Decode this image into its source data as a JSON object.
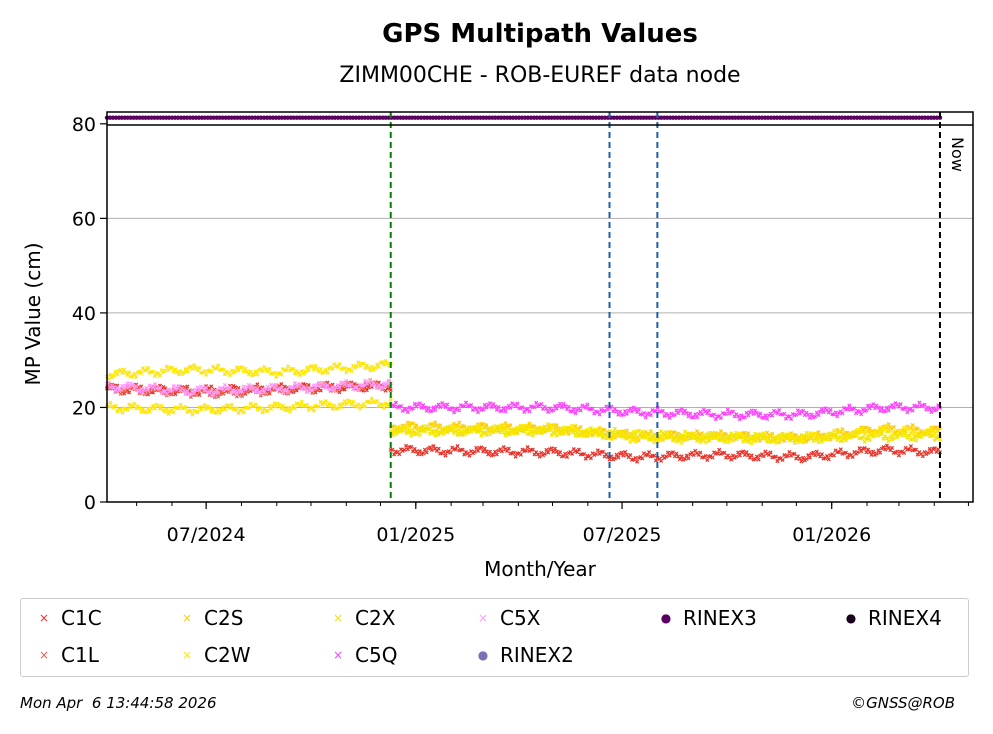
{
  "chart_data": {
    "type": "scatter",
    "title": "GPS Multipath Values",
    "subtitle": "ZIMM00CHE - ROB-EUREF data node",
    "xlabel": "Month/Year",
    "ylabel": "MP Value (cm)",
    "ylim": [
      0,
      82.5
    ],
    "yticks": [
      0,
      20,
      40,
      60,
      80
    ],
    "xlim": [
      "2024-04-05",
      "2026-05-05"
    ],
    "xticks": [
      {
        "date": "2024-07-01",
        "label": "07/2024"
      },
      {
        "date": "2025-01-01",
        "label": "01/2025"
      },
      {
        "date": "2025-07-01",
        "label": "07/2025"
      },
      {
        "date": "2026-01-01",
        "label": "01/2026"
      }
    ],
    "grid": "y",
    "rinex_band_y": 81.3,
    "vertical_lines": [
      {
        "date": "2024-12-10",
        "color": "#008000",
        "label": ""
      },
      {
        "date": "2025-06-20",
        "color": "#1f5fa8",
        "label": ""
      },
      {
        "date": "2025-08-01",
        "color": "#1f5fa8",
        "label": ""
      },
      {
        "date": "2026-04-06",
        "color": "#000000",
        "label": "Now"
      }
    ],
    "series": [
      {
        "name": "C1C",
        "color": "#e8332a",
        "marker": "x",
        "segments": [
          {
            "start": "2024-04-05",
            "end": "2024-12-10",
            "points": [
              [
                0,
                24
              ],
              [
                0.3,
                23.5
              ],
              [
                0.6,
                24
              ],
              [
                1,
                24.5
              ]
            ]
          },
          {
            "start": "2024-12-10",
            "end": "2026-04-06",
            "points": [
              [
                0,
                11
              ],
              [
                0.3,
                10.5
              ],
              [
                0.45,
                9.5
              ],
              [
                0.6,
                10
              ],
              [
                0.75,
                9.5
              ],
              [
                0.9,
                11
              ],
              [
                1,
                10.5
              ]
            ]
          }
        ]
      },
      {
        "name": "C1L",
        "color": "#f06050",
        "marker": "x",
        "segments": [
          {
            "start": "2024-04-05",
            "end": "2024-12-10",
            "points": [
              [
                0,
                24
              ],
              [
                0.4,
                23
              ],
              [
                0.7,
                24
              ],
              [
                1,
                25
              ]
            ]
          }
        ]
      },
      {
        "name": "C2S",
        "color": "#ffcc00",
        "marker": "x",
        "segments": [
          {
            "start": "2024-12-10",
            "end": "2026-04-06",
            "points": [
              [
                0,
                16
              ],
              [
                0.3,
                15.5
              ],
              [
                0.45,
                14
              ],
              [
                0.6,
                14
              ],
              [
                0.75,
                13.5
              ],
              [
                0.9,
                15.5
              ],
              [
                1,
                15
              ]
            ]
          }
        ]
      },
      {
        "name": "C2W",
        "color": "#ffe600",
        "marker": "x",
        "segments": [
          {
            "start": "2024-04-05",
            "end": "2024-12-10",
            "points": [
              [
                0,
                27
              ],
              [
                0.3,
                28
              ],
              [
                0.6,
                27.5
              ],
              [
                1,
                29
              ]
            ]
          },
          {
            "start": "2024-04-05",
            "end": "2024-12-10",
            "points": [
              [
                0,
                20
              ],
              [
                0.3,
                19.5
              ],
              [
                0.6,
                20
              ],
              [
                1,
                21
              ]
            ]
          },
          {
            "start": "2024-12-10",
            "end": "2026-04-06",
            "points": [
              [
                0,
                15
              ],
              [
                0.3,
                15.5
              ],
              [
                0.45,
                13.5
              ],
              [
                0.6,
                13.5
              ],
              [
                0.75,
                13.5
              ],
              [
                0.9,
                15
              ],
              [
                1,
                14.5
              ]
            ]
          }
        ]
      },
      {
        "name": "C2X",
        "color": "#f2e600",
        "marker": "x",
        "segments": [
          {
            "start": "2024-12-10",
            "end": "2026-04-06",
            "points": [
              [
                0,
                15
              ],
              [
                0.3,
                15
              ],
              [
                0.5,
                14
              ],
              [
                0.7,
                13.5
              ],
              [
                1,
                14
              ]
            ]
          }
        ]
      },
      {
        "name": "C5Q",
        "color": "#ff40ff",
        "marker": "x",
        "segments": [
          {
            "start": "2024-12-10",
            "end": "2026-04-06",
            "points": [
              [
                0,
                20
              ],
              [
                0.3,
                20
              ],
              [
                0.45,
                19
              ],
              [
                0.6,
                18.5
              ],
              [
                0.75,
                18.5
              ],
              [
                0.9,
                20
              ],
              [
                1,
                20
              ]
            ]
          }
        ]
      },
      {
        "name": "C5X",
        "color": "#ff99ff",
        "marker": "x",
        "segments": [
          {
            "start": "2024-04-05",
            "end": "2024-12-10",
            "points": [
              [
                0,
                24.5
              ],
              [
                0.3,
                23.5
              ],
              [
                0.6,
                24
              ],
              [
                1,
                25
              ]
            ]
          }
        ]
      },
      {
        "name": "RINEX2",
        "color": "#7b6fb5",
        "marker": "o",
        "segments": []
      },
      {
        "name": "RINEX3",
        "color": "#5a0060",
        "marker": "o",
        "segments": [
          {
            "start": "2024-04-05",
            "end": "2026-04-06",
            "points": [
              [
                0,
                81.3
              ],
              [
                1,
                81.3
              ]
            ]
          }
        ]
      },
      {
        "name": "RINEX4",
        "color": "#1a0020",
        "marker": "o",
        "segments": []
      }
    ]
  },
  "legend": {
    "items": [
      {
        "label": "C1C",
        "color": "#e8332a",
        "glyph": "×"
      },
      {
        "label": "C2S",
        "color": "#ffcc00",
        "glyph": "×"
      },
      {
        "label": "C2X",
        "color": "#f2e600",
        "glyph": "×"
      },
      {
        "label": "C5X",
        "color": "#ff99ff",
        "glyph": "×"
      },
      {
        "label": "RINEX3",
        "color": "#5a0060",
        "glyph": "●"
      },
      {
        "label": "RINEX4",
        "color": "#1a0020",
        "glyph": "●"
      },
      {
        "label": "C1L",
        "color": "#f06050",
        "glyph": "×"
      },
      {
        "label": "C2W",
        "color": "#ffe600",
        "glyph": "×"
      },
      {
        "label": "C5Q",
        "color": "#ff40ff",
        "glyph": "×"
      },
      {
        "label": "RINEX2",
        "color": "#7b6fb5",
        "glyph": "●"
      }
    ]
  },
  "footer": {
    "timestamp": "Mon Apr  6 13:44:58 2026",
    "copyright": "©GNSS@ROB"
  }
}
